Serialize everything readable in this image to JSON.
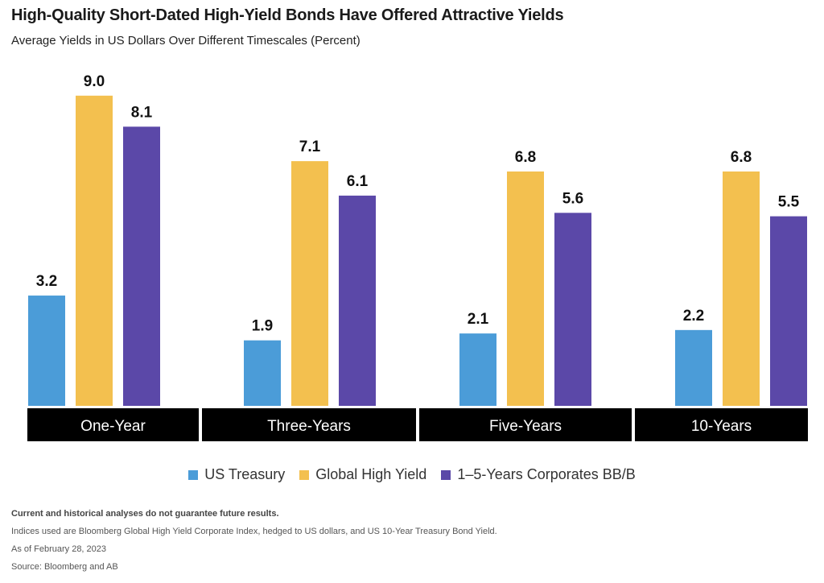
{
  "title": "High-Quality Short-Dated High-Yield Bonds Have Offered Attractive Yields",
  "subtitle": "Average Yields in US Dollars Over Different Timescales (Percent)",
  "colors": {
    "us_treasury": "#4b9cd8",
    "global_high_yield": "#f3c04f",
    "corporates": "#5b48a8",
    "category_band": "#000000"
  },
  "chart_data": {
    "type": "bar",
    "categories": [
      "One-Year",
      "Three-Years",
      "Five-Years",
      "10-Years"
    ],
    "series": [
      {
        "name": "US Treasury",
        "values": [
          3.2,
          1.9,
          2.1,
          2.2
        ]
      },
      {
        "name": "Global High Yield",
        "values": [
          9.0,
          7.1,
          6.8,
          6.8
        ]
      },
      {
        "name": "1–5-Years Corporates BB/B",
        "values": [
          8.1,
          6.1,
          5.6,
          5.5
        ]
      }
    ],
    "data_labels": [
      [
        "3.2",
        "1.9",
        "2.1",
        "2.2"
      ],
      [
        "9.0",
        "7.1",
        "6.8",
        "6.8"
      ],
      [
        "8.1",
        "6.1",
        "5.6",
        "5.5"
      ]
    ],
    "ylim": [
      0,
      9.0
    ],
    "grid": false,
    "legend_position": "bottom"
  },
  "notes": {
    "disclaimer": "Current and historical analyses do not guarantee future results.",
    "indices": "Indices used are Bloomberg Global High Yield Corporate Index, hedged to US dollars, and US 10-Year Treasury Bond Yield.",
    "date": "As of February 28, 2023",
    "source": "Source: Bloomberg and AB"
  }
}
